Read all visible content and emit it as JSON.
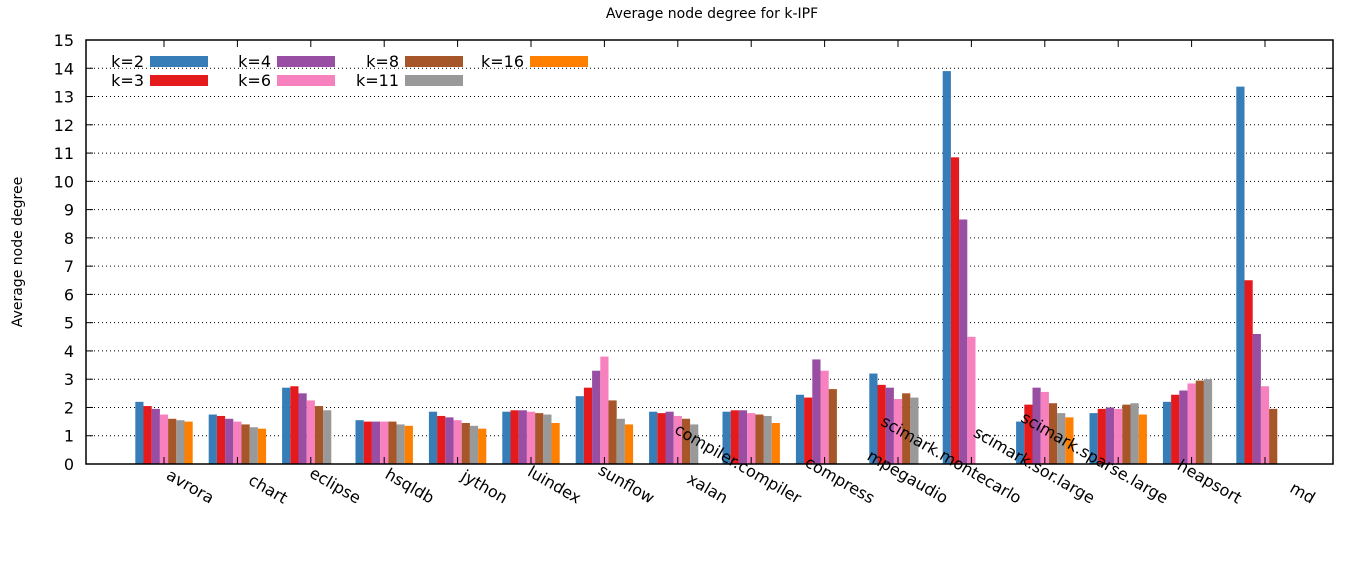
{
  "chart_data": {
    "type": "bar",
    "title": "Average node degree for k-IPF",
    "xlabel": "",
    "ylabel": "Average node degree",
    "ylim": [
      0,
      15
    ],
    "yticks": [
      0,
      1,
      2,
      3,
      4,
      5,
      6,
      7,
      8,
      9,
      10,
      11,
      12,
      13,
      14,
      15
    ],
    "grid": "horizontal",
    "legend_position": "top-left",
    "categories": [
      "avrora",
      "chart",
      "eclipse",
      "hsqldb",
      "jython",
      "luindex",
      "sunflow",
      "xalan",
      "compiler.compiler",
      "compress",
      "mpegaudio",
      "scimark.montecarlo",
      "scimark.sor.large",
      "scimark.sparse.large",
      "heapsort",
      "md"
    ],
    "series": [
      {
        "name": "k=2",
        "color": "#377eb8",
        "values": [
          2.2,
          1.75,
          2.7,
          1.55,
          1.85,
          1.85,
          2.4,
          1.85,
          1.85,
          2.45,
          3.2,
          13.9,
          1.5,
          1.8,
          2.2,
          13.35
        ]
      },
      {
        "name": "k=3",
        "color": "#e41a1c",
        "values": [
          2.05,
          1.7,
          2.75,
          1.5,
          1.7,
          1.9,
          2.7,
          1.8,
          1.9,
          2.35,
          2.8,
          10.85,
          2.1,
          1.95,
          2.45,
          6.5
        ]
      },
      {
        "name": "k=4",
        "color": "#984ea3",
        "values": [
          1.95,
          1.6,
          2.5,
          1.5,
          1.65,
          1.9,
          3.3,
          1.85,
          1.9,
          3.7,
          2.7,
          8.65,
          2.7,
          2.0,
          2.6,
          4.6
        ]
      },
      {
        "name": "k=6",
        "color": "#f781bf",
        "values": [
          1.75,
          1.5,
          2.25,
          1.5,
          1.55,
          1.85,
          3.8,
          1.7,
          1.8,
          3.3,
          2.3,
          4.5,
          2.55,
          1.95,
          2.85,
          2.75
        ]
      },
      {
        "name": "k=8",
        "color": "#a65628",
        "values": [
          1.6,
          1.4,
          2.05,
          1.5,
          1.45,
          1.8,
          2.25,
          1.6,
          1.75,
          2.65,
          2.5,
          null,
          2.15,
          2.1,
          2.95,
          1.95
        ]
      },
      {
        "name": "k=11",
        "color": "#999999",
        "values": [
          1.55,
          1.3,
          1.9,
          1.4,
          1.35,
          1.75,
          1.6,
          1.4,
          1.7,
          null,
          2.35,
          null,
          1.8,
          2.15,
          3.0,
          null
        ]
      },
      {
        "name": "k=16",
        "color": "#ff7f00",
        "values": [
          1.5,
          1.25,
          null,
          1.35,
          1.25,
          1.45,
          1.4,
          null,
          1.45,
          null,
          null,
          null,
          1.65,
          1.75,
          null,
          null
        ]
      }
    ]
  }
}
